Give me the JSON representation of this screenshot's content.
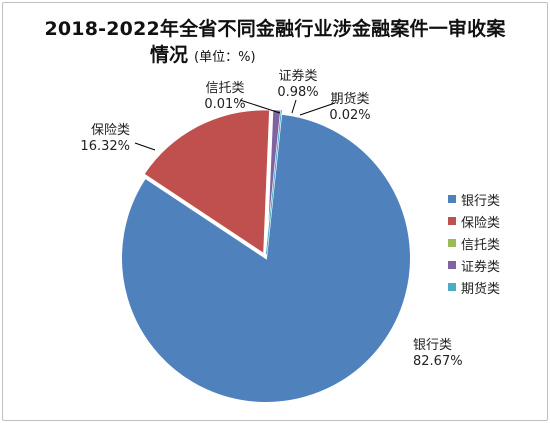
{
  "chart_data": {
    "type": "pie",
    "title": "2018-2022年全省不同金融行业涉金融案件一审收案",
    "title_line2": "情况",
    "unit_note": "(单位：%)",
    "slices": [
      {
        "label": "银行类",
        "value": 82.67,
        "value_text": "82.67%",
        "color": "#4f81bd"
      },
      {
        "label": "保险类",
        "value": 16.32,
        "value_text": "16.32%",
        "color": "#c0504d"
      },
      {
        "label": "信托类",
        "value": 0.01,
        "value_text": "0.01%",
        "color": "#9bbb59"
      },
      {
        "label": "证券类",
        "value": 0.98,
        "value_text": "0.98%",
        "color": "#8064a2"
      },
      {
        "label": "期货类",
        "value": 0.02,
        "value_text": "0.02%",
        "color": "#4bacc6"
      }
    ],
    "legend_position": "right"
  }
}
